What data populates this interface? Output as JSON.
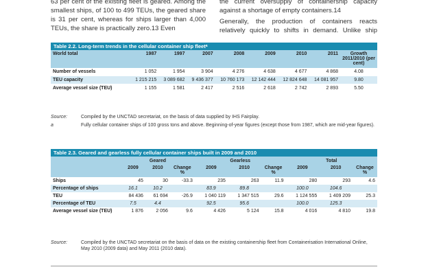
{
  "intro": {
    "left_p": "63 per cent of the existing fleet is geared. Among the smallest ships, of 100 to 499 TEUs, the geared share is 31 per cent, whereas for ships larger than 4,000 TEUs, the share is practically zero.13 Even",
    "right_p1": "the current oversupply of containership capacity against a shortage of empty containers.14",
    "right_p2": "Generally, the production of containers reacts relatively quickly to shifts in demand. Unlike ship construction,"
  },
  "table22": {
    "title": "Table 2.2. Long-term trends in the cellular container ship fleetᵃ",
    "headers": [
      "World total",
      "1987",
      "1997",
      "2007",
      "2008",
      "2009",
      "2010",
      "2011",
      "Growth 2011/2010 (per cent)"
    ],
    "rows": [
      {
        "label": "Number of vessels",
        "values": [
          "1 052",
          "1 954",
          "3 904",
          "4 276",
          "4 638",
          "4 677",
          "4 868",
          "4.08"
        ]
      },
      {
        "label": "TEU capacity",
        "values": [
          "1 215 215",
          "3 089 682",
          "9 436 377",
          "10 760 173",
          "12 142 444",
          "12 824 648",
          "14 081 957",
          "9.80"
        ]
      },
      {
        "label": "Average vessel size (TEU)",
        "values": [
          "1 155",
          "1 581",
          "2 417",
          "2 516",
          "2 618",
          "2 742",
          "2 893",
          "5.50"
        ]
      }
    ],
    "source_key": "Source:",
    "source_text": "Compiled by the UNCTAD secretariat, on the basis of data supplied by IHS Fairplay.",
    "note_key": "a",
    "note_text": "Fully cellular container ships of 100 gross tons and above. Beginning-of-year figures (except those from 1987, which are mid-year figures)."
  },
  "table23": {
    "title": "Table 2.3. Geared and gearless fully cellular container ships built in 2009 and 2010",
    "groups": [
      "Geared",
      "Gearless",
      "Total"
    ],
    "subheaders": [
      "2009",
      "2010",
      "Change %"
    ],
    "rows": [
      {
        "label": "Ships",
        "values": [
          "45",
          "30",
          "-33.3",
          "235",
          "263",
          "11.9",
          "280",
          "293",
          "4.6"
        ]
      },
      {
        "label": "Percentage of ships",
        "values": [
          "16.1",
          "10.2",
          "",
          "83.9",
          "89.8",
          "",
          "100.0",
          "104.6",
          ""
        ]
      },
      {
        "label": "TEU",
        "values": [
          "84 436",
          "61 694",
          "-26.9",
          "1 040 119",
          "1 347 515",
          "29.6",
          "1 124 555",
          "1 409 209",
          "25.3"
        ]
      },
      {
        "label": "Percentage of TEU",
        "values": [
          "7.5",
          "4.4",
          "",
          "92.5",
          "95.6",
          "",
          "100.0",
          "125.3",
          ""
        ]
      },
      {
        "label": "Average vessel size (TEU)",
        "values": [
          "1 876",
          "2 056",
          "9.6",
          "4 426",
          "5 124",
          "15.8",
          "4 016",
          "4 810",
          "19.8"
        ]
      }
    ],
    "source_key": "Source:",
    "source_text": "Compiled by the UNCTAD secretariat on the basis of data on the existing containership fleet from Containerisation International Online, May 2010 (2009 data) and May 2011 (2010 data)."
  }
}
